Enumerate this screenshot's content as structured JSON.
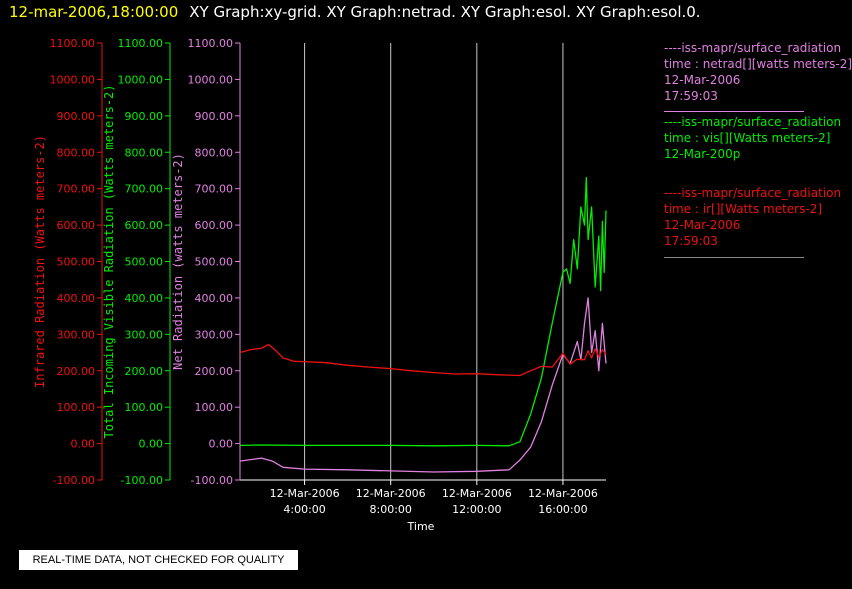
{
  "header": {
    "timestamp": "12-mar-2006,18:00:00",
    "graphs": "XY Graph:xy-grid.  XY Graph:netrad.  XY Graph:esol.  XY Graph:esol.0."
  },
  "chart_data": {
    "type": "line",
    "x_axis": {
      "label": "Time",
      "range": [
        "2006-03-12T01:00",
        "2006-03-12T18:00"
      ],
      "ticks": [
        {
          "date": "12-Mar-2006",
          "time": "4:00:00",
          "value": "2006-03-12T04:00"
        },
        {
          "date": "12-Mar-2006",
          "time": "8:00:00",
          "value": "2006-03-12T08:00"
        },
        {
          "date": "12-Mar-2006",
          "time": "12:00:00",
          "value": "2006-03-12T12:00"
        },
        {
          "date": "12-Mar-2006",
          "time": "16:00:00",
          "value": "2006-03-12T16:00"
        }
      ],
      "grid": true
    },
    "y_axes": [
      {
        "id": "ir",
        "label": "Infrared Radiation (Watts meters-2)",
        "color": "#ee1111",
        "range": [
          -100,
          1100
        ]
      },
      {
        "id": "vis",
        "label": "Total Incoming Visible Radiation (Watts meters-2)",
        "color": "#00ee00",
        "range": [
          -100,
          1100
        ]
      },
      {
        "id": "netrad",
        "label": "Net Radiation (watts meters-2)",
        "color": "#e080e0",
        "range": [
          -100,
          1100
        ]
      }
    ],
    "y_ticks": [
      "-100.00",
      "0.00",
      "100.00",
      "200.00",
      "300.00",
      "400.00",
      "500.00",
      "600.00",
      "700.00",
      "800.00",
      "900.00",
      "1000.00",
      "1100.00"
    ],
    "series": [
      {
        "axis": "ir",
        "color": "#ee1111",
        "points": [
          [
            "2006-03-12T01:00",
            250
          ],
          [
            "2006-03-12T01:30",
            258
          ],
          [
            "2006-03-12T02:00",
            262
          ],
          [
            "2006-03-12T02:20",
            272
          ],
          [
            "2006-03-12T02:40",
            255
          ],
          [
            "2006-03-12T03:00",
            235
          ],
          [
            "2006-03-12T03:30",
            226
          ],
          [
            "2006-03-12T04:00",
            225
          ],
          [
            "2006-03-12T05:00",
            222
          ],
          [
            "2006-03-12T06:00",
            215
          ],
          [
            "2006-03-12T07:00",
            210
          ],
          [
            "2006-03-12T08:00",
            206
          ],
          [
            "2006-03-12T09:00",
            200
          ],
          [
            "2006-03-12T10:00",
            195
          ],
          [
            "2006-03-12T11:00",
            191
          ],
          [
            "2006-03-12T12:00",
            192
          ],
          [
            "2006-03-12T13:00",
            189
          ],
          [
            "2006-03-12T14:00",
            187
          ],
          [
            "2006-03-12T14:30",
            200
          ],
          [
            "2006-03-12T15:00",
            212
          ],
          [
            "2006-03-12T15:30",
            210
          ],
          [
            "2006-03-12T16:00",
            248
          ],
          [
            "2006-03-12T16:20",
            218
          ],
          [
            "2006-03-12T16:40",
            232
          ],
          [
            "2006-03-12T17:00",
            230
          ],
          [
            "2006-03-12T17:10",
            255
          ],
          [
            "2006-03-12T17:20",
            235
          ],
          [
            "2006-03-12T17:30",
            260
          ],
          [
            "2006-03-12T17:40",
            238
          ],
          [
            "2006-03-12T17:50",
            258
          ],
          [
            "2006-03-12T18:00",
            245
          ]
        ]
      },
      {
        "axis": "vis",
        "color": "#00ee00",
        "points": [
          [
            "2006-03-12T01:00",
            -5
          ],
          [
            "2006-03-12T02:00",
            -4
          ],
          [
            "2006-03-12T04:00",
            -5
          ],
          [
            "2006-03-12T06:00",
            -5
          ],
          [
            "2006-03-12T08:00",
            -5
          ],
          [
            "2006-03-12T10:00",
            -6
          ],
          [
            "2006-03-12T12:00",
            -5
          ],
          [
            "2006-03-12T13:30",
            -6
          ],
          [
            "2006-03-12T14:00",
            5
          ],
          [
            "2006-03-12T14:30",
            80
          ],
          [
            "2006-03-12T15:00",
            180
          ],
          [
            "2006-03-12T15:30",
            330
          ],
          [
            "2006-03-12T16:00",
            470
          ],
          [
            "2006-03-12T16:10",
            480
          ],
          [
            "2006-03-12T16:20",
            440
          ],
          [
            "2006-03-12T16:30",
            560
          ],
          [
            "2006-03-12T16:40",
            480
          ],
          [
            "2006-03-12T16:50",
            650
          ],
          [
            "2006-03-12T17:00",
            600
          ],
          [
            "2006-03-12T17:05",
            730
          ],
          [
            "2006-03-12T17:10",
            560
          ],
          [
            "2006-03-12T17:20",
            650
          ],
          [
            "2006-03-12T17:30",
            430
          ],
          [
            "2006-03-12T17:40",
            570
          ],
          [
            "2006-03-12T17:45",
            420
          ],
          [
            "2006-03-12T17:50",
            610
          ],
          [
            "2006-03-12T17:55",
            470
          ],
          [
            "2006-03-12T18:00",
            640
          ]
        ]
      },
      {
        "axis": "netrad",
        "color": "#e080e0",
        "points": [
          [
            "2006-03-12T01:00",
            -48
          ],
          [
            "2006-03-12T02:00",
            -40
          ],
          [
            "2006-03-12T02:30",
            -48
          ],
          [
            "2006-03-12T03:00",
            -65
          ],
          [
            "2006-03-12T04:00",
            -70
          ],
          [
            "2006-03-12T06:00",
            -72
          ],
          [
            "2006-03-12T08:00",
            -75
          ],
          [
            "2006-03-12T10:00",
            -78
          ],
          [
            "2006-03-12T12:00",
            -76
          ],
          [
            "2006-03-12T13:30",
            -72
          ],
          [
            "2006-03-12T14:00",
            -45
          ],
          [
            "2006-03-12T14:30",
            -10
          ],
          [
            "2006-03-12T15:00",
            60
          ],
          [
            "2006-03-12T15:30",
            160
          ],
          [
            "2006-03-12T16:00",
            245
          ],
          [
            "2006-03-12T16:20",
            220
          ],
          [
            "2006-03-12T16:40",
            280
          ],
          [
            "2006-03-12T16:50",
            230
          ],
          [
            "2006-03-12T17:00",
            330
          ],
          [
            "2006-03-12T17:10",
            400
          ],
          [
            "2006-03-12T17:20",
            250
          ],
          [
            "2006-03-12T17:30",
            310
          ],
          [
            "2006-03-12T17:40",
            200
          ],
          [
            "2006-03-12T17:50",
            330
          ],
          [
            "2006-03-12T18:00",
            220
          ]
        ]
      }
    ]
  },
  "legend": {
    "netrad": {
      "line1": "----iss-mapr/surface_radiation",
      "line2": "time : netrad[][watts meters-2]",
      "line3": "12-Mar-2006",
      "line4": "17:59:03"
    },
    "vis": {
      "line1": "----iss-mapr/surface_radiation",
      "line2": "time : vis[][Watts meters-2]",
      "line3": "12-Mar-200p"
    },
    "ir": {
      "line1": "----iss-mapr/surface_radiation",
      "line2": "time : ir[][Watts meters-2]",
      "line3": "12-Mar-2006",
      "line4": "17:59:03"
    }
  },
  "footer": {
    "quality_note": "REAL-TIME DATA, NOT CHECKED FOR QUALITY"
  }
}
